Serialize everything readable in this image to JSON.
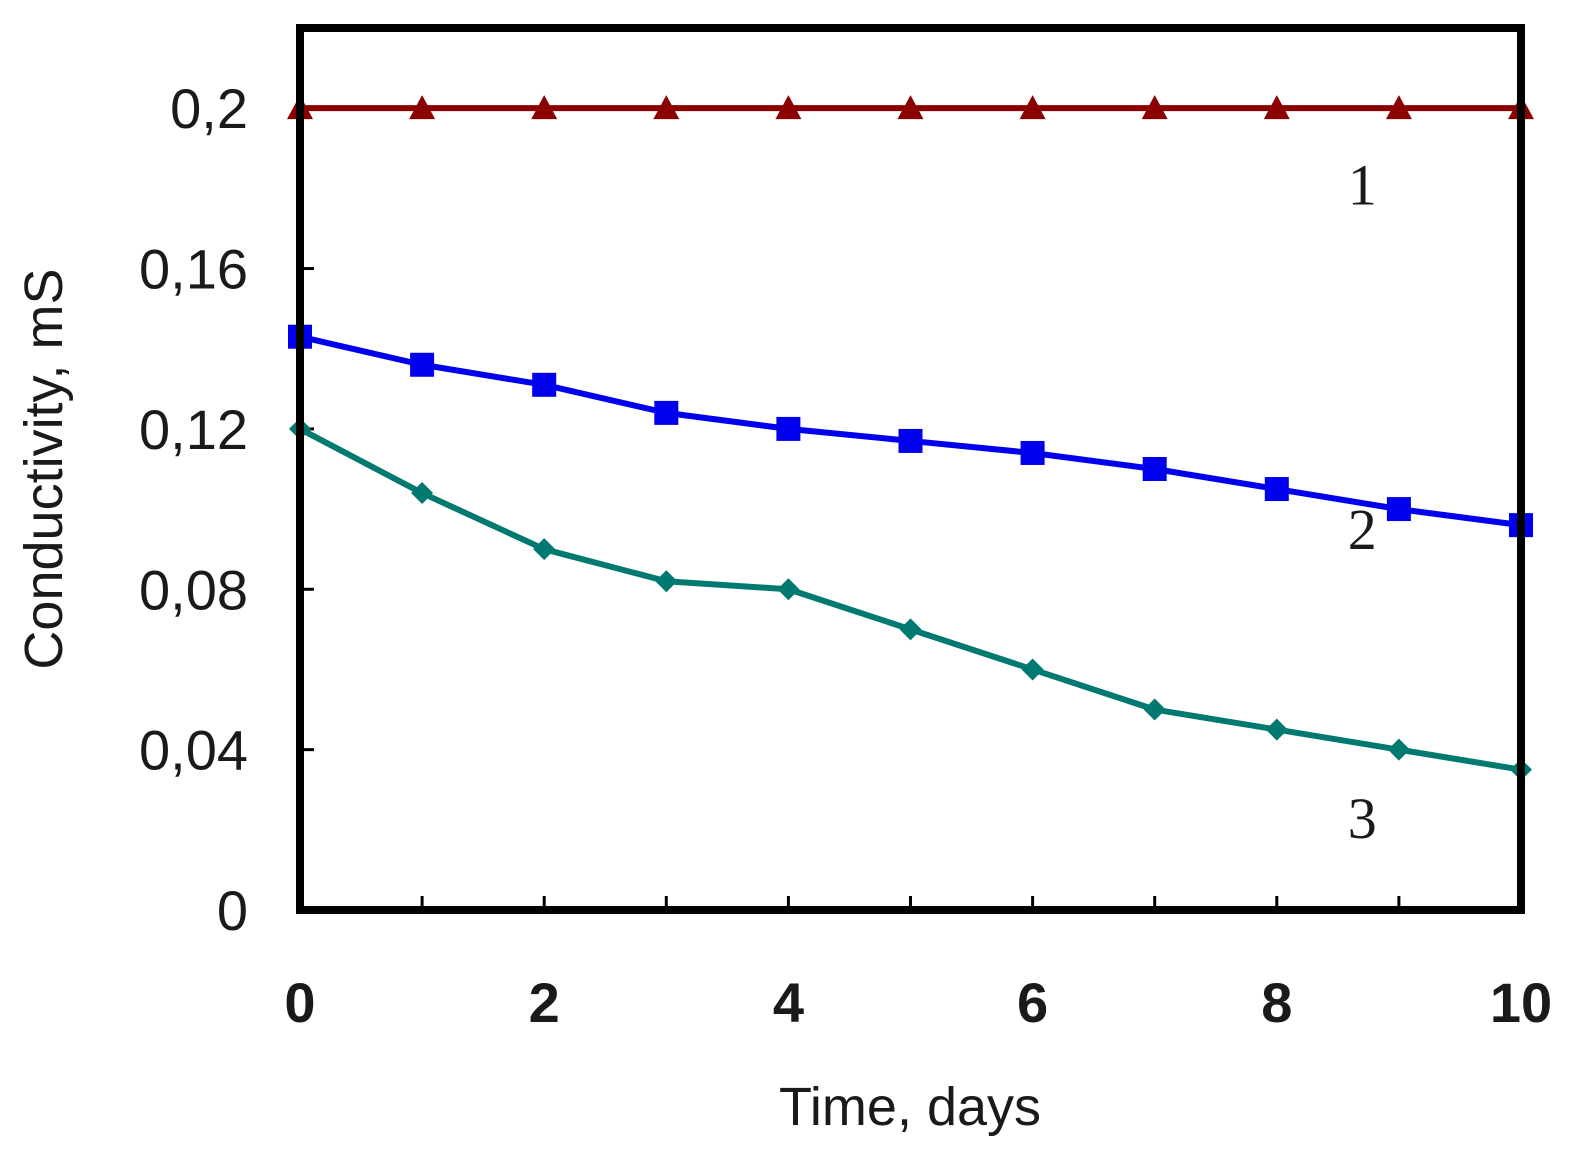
{
  "chart_data": {
    "type": "line",
    "title": "",
    "xlabel": "Time, days",
    "ylabel": "Conductivity, mS",
    "xlim": [
      0,
      10
    ],
    "ylim": [
      0,
      0.22
    ],
    "x_ticks": [
      0,
      2,
      4,
      6,
      8,
      10
    ],
    "x_tick_labels": [
      "0",
      "2",
      "4",
      "6",
      "8",
      "10"
    ],
    "x_minor_ticks": [
      1,
      3,
      5,
      7,
      9
    ],
    "y_ticks": [
      0,
      0.04,
      0.08,
      0.12,
      0.16,
      0.2
    ],
    "y_tick_labels": [
      "0",
      "0,04",
      "0,08",
      "0,12",
      "0,16",
      "0,2"
    ],
    "grid": false,
    "x": [
      0,
      1,
      2,
      3,
      4,
      5,
      6,
      7,
      8,
      9,
      10
    ],
    "series": [
      {
        "name": "1",
        "marker": "triangle",
        "color": "#8b0000",
        "values": [
          0.2,
          0.2,
          0.2,
          0.2,
          0.2,
          0.2,
          0.2,
          0.2,
          0.2,
          0.2,
          0.2
        ],
        "label_x": 8.7,
        "label_y": 0.176
      },
      {
        "name": "2",
        "marker": "square",
        "color": "#0000ee",
        "values": [
          0.143,
          0.136,
          0.131,
          0.124,
          0.12,
          0.117,
          0.114,
          0.11,
          0.105,
          0.1,
          0.096
        ],
        "label_x": 8.7,
        "label_y": 0.09
      },
      {
        "name": "3",
        "marker": "diamond",
        "color": "#007a70",
        "values": [
          0.12,
          0.104,
          0.09,
          0.082,
          0.08,
          0.07,
          0.06,
          0.05,
          0.045,
          0.04,
          0.035
        ],
        "label_x": 8.7,
        "label_y": 0.018
      }
    ]
  }
}
